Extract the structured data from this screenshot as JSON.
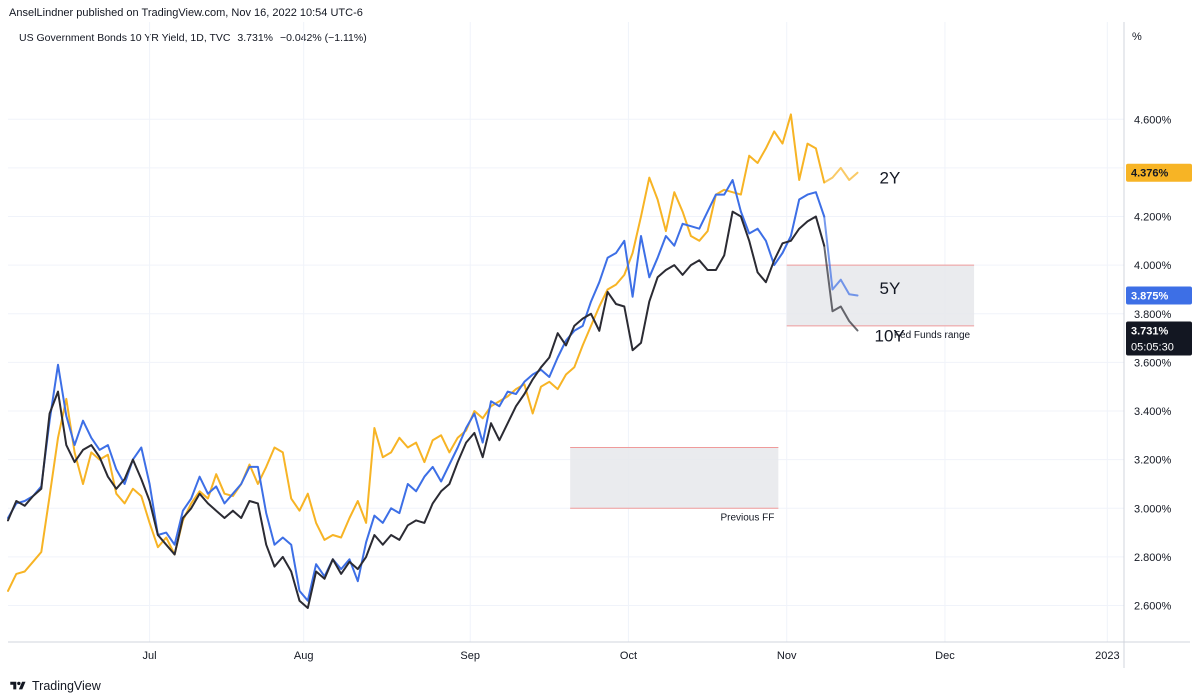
{
  "header": {
    "publisher": "AnselLindner published on TradingView.com, Nov 16, 2022 10:54 UTC-6",
    "legend": {
      "symbol": "US Government Bonds 10 YR Yield, 1D, TVC",
      "price": "3.731%",
      "change": "−0.042% (−1.11%)"
    }
  },
  "footer": {
    "brand": "TradingView"
  },
  "colors": {
    "y2": "#f7b425",
    "y5": "#3d6fe6",
    "y10": "#2b2b33",
    "grid": "#f0f3fa",
    "axis_border": "#d1d4dc",
    "box_fill": "#e6e7eb",
    "box_edge": "#ef9a9a",
    "badge_dark": "#131722"
  },
  "chart_data": {
    "type": "line",
    "title": "US Government Bonds 10 YR Yield, 1D, TVC",
    "ylabel": "%",
    "ylim": [
      2.45,
      5.0
    ],
    "xlim": [
      0,
      134
    ],
    "y_ticks": [
      {
        "value": 4.6,
        "label": "4.600%"
      },
      {
        "value": 4.4,
        "label": "4.400%"
      },
      {
        "value": 4.2,
        "label": "4.200%"
      },
      {
        "value": 4.0,
        "label": "4.000%"
      },
      {
        "value": 3.8,
        "label": "3.800%"
      },
      {
        "value": 3.6,
        "label": "3.600%"
      },
      {
        "value": 3.4,
        "label": "3.400%"
      },
      {
        "value": 3.2,
        "label": "3.200%"
      },
      {
        "value": 3.0,
        "label": "3.000%"
      },
      {
        "value": 2.8,
        "label": "2.800%"
      },
      {
        "value": 2.6,
        "label": "2.600%"
      }
    ],
    "x_ticks": [
      {
        "value": 17.0,
        "label": "Jul"
      },
      {
        "value": 35.5,
        "label": "Aug"
      },
      {
        "value": 55.5,
        "label": "Sep"
      },
      {
        "value": 74.5,
        "label": "Oct"
      },
      {
        "value": 93.5,
        "label": "Nov"
      },
      {
        "value": 112.5,
        "label": "Dec"
      },
      {
        "value": 132.0,
        "label": "2023"
      }
    ],
    "series": [
      {
        "name": "2Y",
        "label": "2Y",
        "color": "#f7b425",
        "last_value_label": "4.376%",
        "x": [
          0,
          1,
          2,
          3,
          4,
          5,
          6,
          7,
          8,
          9,
          10,
          11,
          12,
          13,
          14,
          15,
          16,
          17,
          18,
          19,
          20,
          21,
          22,
          23,
          24,
          25,
          26,
          27,
          28,
          29,
          30,
          31,
          32,
          33,
          34,
          35,
          36,
          37,
          38,
          39,
          40,
          41,
          42,
          43,
          44,
          45,
          46,
          47,
          48,
          49,
          50,
          51,
          52,
          53,
          54,
          55,
          56,
          57,
          58,
          59,
          60,
          61,
          62,
          63,
          64,
          65,
          66,
          67,
          68,
          69,
          70,
          71,
          72,
          73,
          74,
          75,
          76,
          77,
          78,
          79,
          80,
          81,
          82,
          83,
          84,
          85,
          86,
          87,
          88,
          89,
          90,
          91,
          92,
          93,
          94,
          95,
          96,
          97,
          98,
          99,
          100,
          101,
          102
        ],
        "values": [
          2.66,
          2.73,
          2.74,
          2.78,
          2.82,
          3.05,
          3.29,
          3.45,
          3.23,
          3.1,
          3.23,
          3.2,
          3.22,
          3.06,
          3.02,
          3.08,
          3.05,
          2.94,
          2.84,
          2.88,
          2.81,
          2.95,
          3.02,
          3.07,
          3.04,
          3.14,
          3.06,
          3.05,
          3.1,
          3.18,
          3.1,
          3.17,
          3.25,
          3.23,
          3.04,
          2.99,
          3.06,
          2.94,
          2.87,
          2.89,
          2.88,
          2.96,
          3.03,
          2.94,
          3.33,
          3.21,
          3.23,
          3.29,
          3.25,
          3.27,
          3.19,
          3.28,
          3.3,
          3.23,
          3.29,
          3.32,
          3.4,
          3.37,
          3.42,
          3.44,
          3.46,
          3.49,
          3.51,
          3.39,
          3.5,
          3.52,
          3.49,
          3.55,
          3.58,
          3.67,
          3.75,
          3.83,
          3.9,
          3.92,
          3.96,
          4.05,
          4.2,
          4.36,
          4.27,
          4.14,
          4.3,
          4.22,
          4.12,
          4.1,
          4.14,
          4.29,
          4.31,
          4.3,
          4.29,
          4.45,
          4.42,
          4.48,
          4.55,
          4.5,
          4.62,
          4.35,
          4.5,
          4.48,
          4.34,
          4.36,
          4.4,
          4.35,
          4.38
        ]
      },
      {
        "name": "5Y",
        "label": "5Y",
        "color": "#3d6fe6",
        "last_value_label": "3.875%",
        "x": [
          0,
          1,
          2,
          3,
          4,
          5,
          6,
          7,
          8,
          9,
          10,
          11,
          12,
          13,
          14,
          15,
          16,
          17,
          18,
          19,
          20,
          21,
          22,
          23,
          24,
          25,
          26,
          27,
          28,
          29,
          30,
          31,
          32,
          33,
          34,
          35,
          36,
          37,
          38,
          39,
          40,
          41,
          42,
          43,
          44,
          45,
          46,
          47,
          48,
          49,
          50,
          51,
          52,
          53,
          54,
          55,
          56,
          57,
          58,
          59,
          60,
          61,
          62,
          63,
          64,
          65,
          66,
          67,
          68,
          69,
          70,
          71,
          72,
          73,
          74,
          75,
          76,
          77,
          78,
          79,
          80,
          81,
          82,
          83,
          84,
          85,
          86,
          87,
          88,
          89,
          90,
          91,
          92,
          93,
          94,
          95,
          96,
          97,
          98,
          99,
          100,
          101,
          102
        ],
        "values": [
          2.96,
          3.02,
          3.03,
          3.05,
          3.09,
          3.36,
          3.59,
          3.38,
          3.26,
          3.36,
          3.29,
          3.24,
          3.26,
          3.16,
          3.1,
          3.2,
          3.25,
          3.1,
          2.89,
          2.9,
          2.85,
          2.99,
          3.04,
          3.13,
          3.06,
          3.09,
          3.02,
          3.06,
          3.1,
          3.17,
          3.17,
          2.98,
          2.85,
          2.88,
          2.85,
          2.66,
          2.62,
          2.77,
          2.72,
          2.79,
          2.75,
          2.79,
          2.7,
          2.86,
          2.97,
          2.94,
          3.0,
          2.98,
          3.1,
          3.07,
          3.13,
          3.17,
          3.11,
          3.18,
          3.25,
          3.33,
          3.39,
          3.27,
          3.44,
          3.42,
          3.48,
          3.47,
          3.52,
          3.55,
          3.57,
          3.54,
          3.62,
          3.69,
          3.73,
          3.75,
          3.85,
          3.93,
          4.03,
          4.05,
          4.1,
          3.87,
          4.12,
          3.95,
          4.03,
          4.12,
          4.08,
          4.17,
          4.16,
          4.15,
          4.22,
          4.29,
          4.29,
          4.35,
          4.22,
          4.13,
          4.15,
          4.1,
          4.0,
          4.05,
          4.12,
          4.27,
          4.29,
          4.3,
          4.2,
          3.9,
          3.94,
          3.88,
          3.875
        ]
      },
      {
        "name": "10Y",
        "label": "10Y",
        "color": "#2b2b33",
        "last_value_label": "3.731%",
        "x": [
          0,
          1,
          2,
          3,
          4,
          5,
          6,
          7,
          8,
          9,
          10,
          11,
          12,
          13,
          14,
          15,
          16,
          17,
          18,
          19,
          20,
          21,
          22,
          23,
          24,
          25,
          26,
          27,
          28,
          29,
          30,
          31,
          32,
          33,
          34,
          35,
          36,
          37,
          38,
          39,
          40,
          41,
          42,
          43,
          44,
          45,
          46,
          47,
          48,
          49,
          50,
          51,
          52,
          53,
          54,
          55,
          56,
          57,
          58,
          59,
          60,
          61,
          62,
          63,
          64,
          65,
          66,
          67,
          68,
          69,
          70,
          71,
          72,
          73,
          74,
          75,
          76,
          77,
          78,
          79,
          80,
          81,
          82,
          83,
          84,
          85,
          86,
          87,
          88,
          89,
          90,
          91,
          92,
          93,
          94,
          95,
          96,
          97,
          98,
          99,
          100,
          101,
          102
        ],
        "values": [
          2.95,
          3.03,
          3.01,
          3.05,
          3.08,
          3.39,
          3.48,
          3.26,
          3.19,
          3.24,
          3.26,
          3.21,
          3.13,
          3.08,
          3.12,
          3.2,
          3.12,
          3.03,
          2.89,
          2.85,
          2.81,
          2.96,
          3.0,
          3.06,
          3.02,
          2.99,
          2.96,
          2.99,
          2.96,
          3.03,
          3.02,
          2.85,
          2.76,
          2.8,
          2.74,
          2.62,
          2.59,
          2.74,
          2.71,
          2.79,
          2.73,
          2.78,
          2.75,
          2.8,
          2.89,
          2.85,
          2.89,
          2.87,
          2.93,
          2.95,
          2.94,
          3.02,
          3.07,
          3.1,
          3.19,
          3.27,
          3.31,
          3.21,
          3.35,
          3.28,
          3.35,
          3.42,
          3.47,
          3.53,
          3.58,
          3.62,
          3.72,
          3.67,
          3.75,
          3.78,
          3.8,
          3.73,
          3.89,
          3.84,
          3.83,
          3.65,
          3.68,
          3.85,
          3.95,
          3.98,
          4.0,
          3.96,
          4.0,
          4.02,
          3.98,
          3.98,
          4.04,
          4.22,
          4.2,
          4.1,
          3.97,
          3.93,
          4.02,
          4.09,
          4.1,
          4.15,
          4.18,
          4.2,
          4.08,
          3.81,
          3.83,
          3.77,
          3.731
        ]
      }
    ],
    "annotations": [
      {
        "label": "Fed Funds range",
        "x_start": 93.5,
        "x_end": 116.0,
        "y_low": 3.75,
        "y_high": 4.0
      },
      {
        "label": "Previous FF",
        "x_start": 67.5,
        "x_end": 92.5,
        "y_low": 3.0,
        "y_high": 3.25
      }
    ],
    "current_price": {
      "value": 3.731,
      "label": "3.731%",
      "countdown": "05:05:30"
    },
    "axis_unit": "%"
  }
}
